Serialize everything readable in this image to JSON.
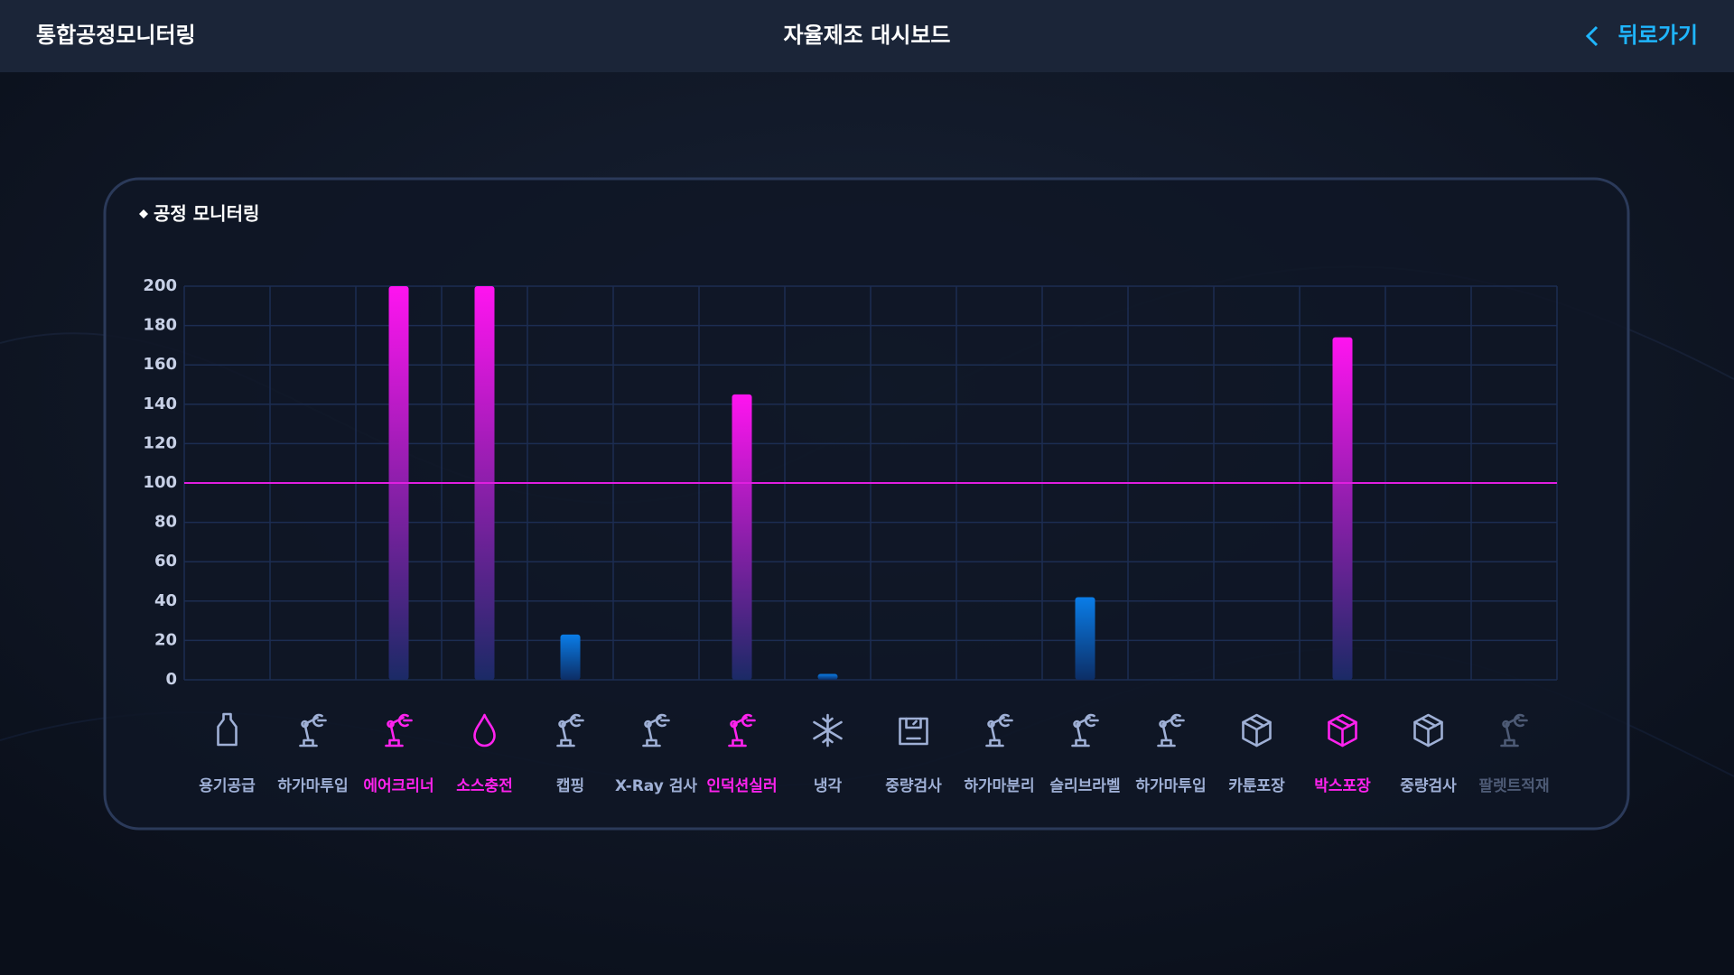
{
  "header": {
    "brand": "통합공정모니터링",
    "title": "자율제조 대시보드",
    "back": "뒤로가기"
  },
  "panel_title": "공정 모니터링",
  "chart_data": {
    "type": "bar",
    "categories": [
      "용기공급",
      "하가마투입",
      "에어크리너",
      "소스충전",
      "캡핑",
      "X-Ray 검사",
      "인덕션실러",
      "냉각",
      "중량검사",
      "하가마분리",
      "슬리브라벨",
      "하가마투입",
      "카툰포장",
      "박스포장",
      "중량검사",
      "팔렛트적재"
    ],
    "values": [
      0,
      0,
      200,
      200,
      23,
      0,
      145,
      3,
      0,
      0,
      42,
      0,
      0,
      174,
      0,
      0
    ],
    "ylim": [
      0,
      200
    ],
    "yticks": [
      0,
      20,
      40,
      60,
      80,
      100,
      120,
      140,
      160,
      180,
      200
    ],
    "threshold": 100,
    "threshold_color": "#e01ee0",
    "color": "#0a7de8",
    "over_color": "#ff14f0",
    "label_colors": [
      "#9fb0d6",
      "#9fb0d6",
      "#ff22ee",
      "#ff22ee",
      "#9fb0d6",
      "#9fb0d6",
      "#ff22ee",
      "#9fb0d6",
      "#9fb0d6",
      "#9fb0d6",
      "#9fb0d6",
      "#9fb0d6",
      "#9fb0d6",
      "#ff22ee",
      "#9fb0d6",
      "#4d5a75"
    ],
    "grid": true
  }
}
